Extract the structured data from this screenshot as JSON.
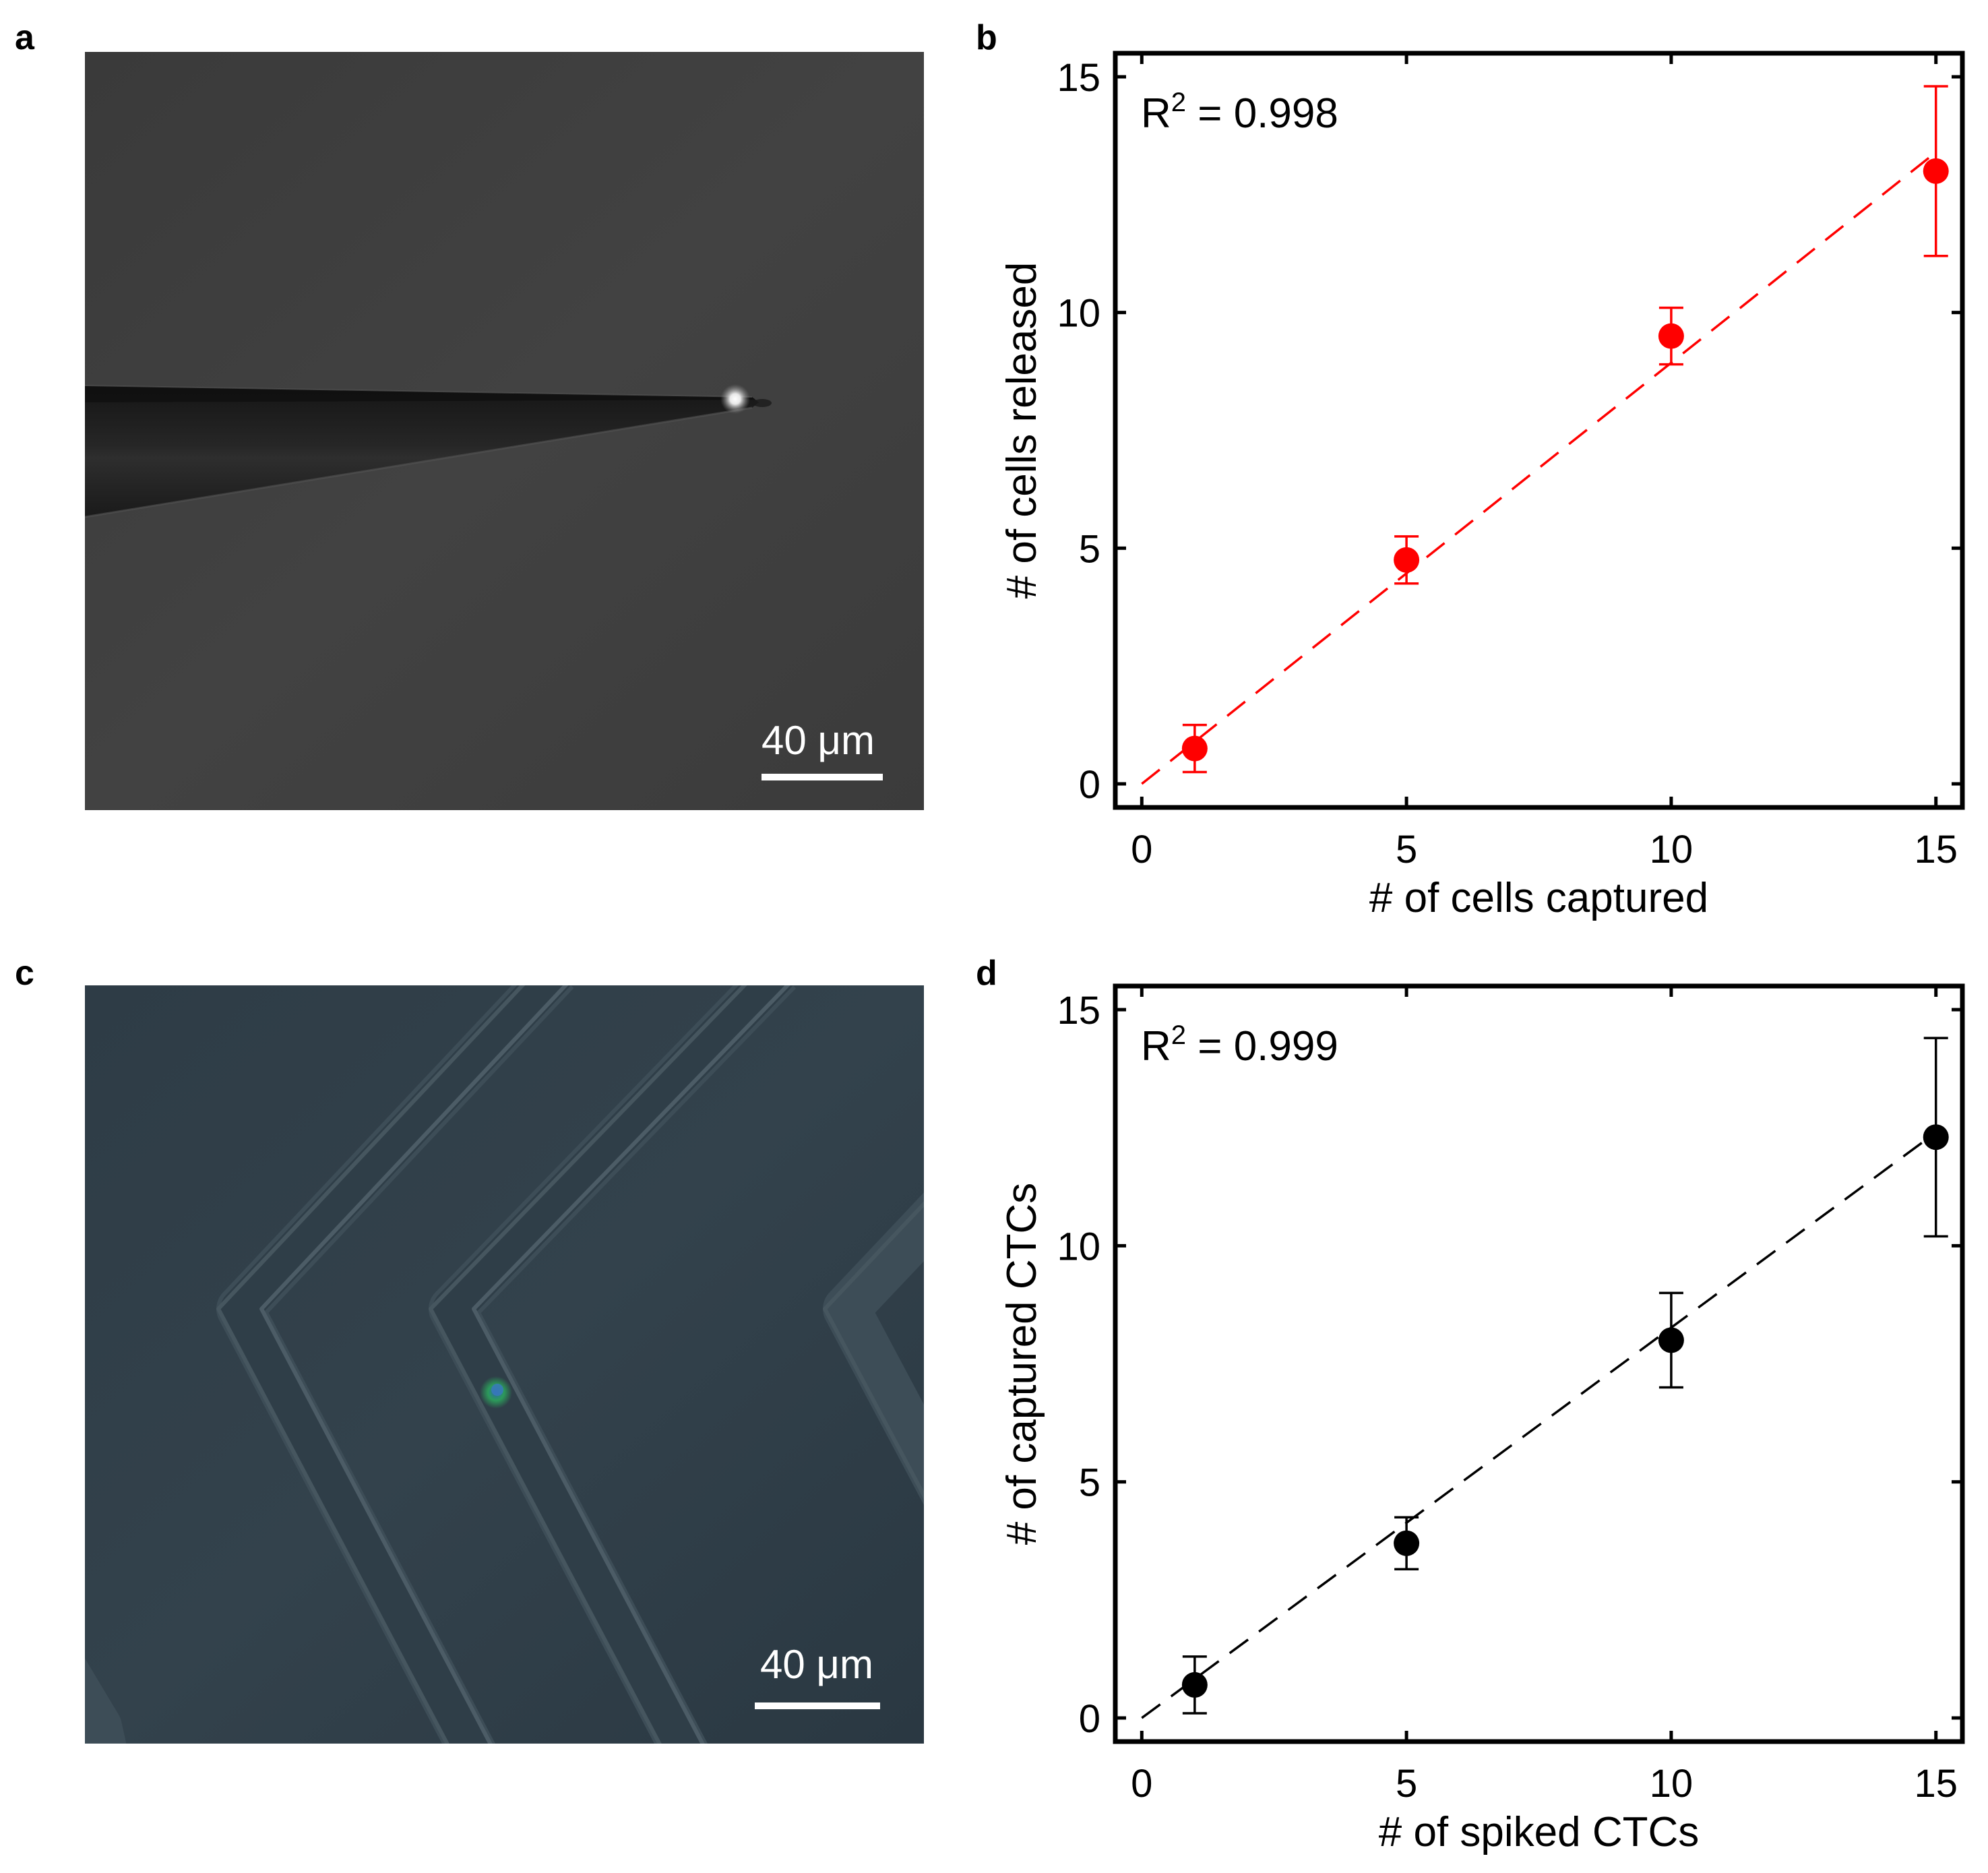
{
  "panels": {
    "a": {
      "letter": "a",
      "scale_label": "40 μm",
      "image_alt": "grayscale micrograph of a micropipette tip"
    },
    "b": {
      "letter": "b"
    },
    "c": {
      "letter": "c",
      "scale_label": "40 μm",
      "image_alt": "bright-field micrograph of herringbone microchannel with a fluorescent cell"
    },
    "d": {
      "letter": "d"
    }
  },
  "colors": {
    "red_series": "#ff0000",
    "black_series": "#000000",
    "micro_a_bg": "#3d3d3d",
    "micro_c_bg": "#2c3a44"
  },
  "chart_data": [
    {
      "id": "b",
      "type": "scatter",
      "xlabel": "# of cells captured",
      "ylabel": "# of cells released",
      "annotation_main": "R",
      "annotation_sup": "2",
      "annotation_value": " = 0.998",
      "xlim": [
        -0.5,
        15.5
      ],
      "ylim": [
        -0.5,
        15.5
      ],
      "xticks": [
        0,
        5,
        10,
        15
      ],
      "yticks": [
        0,
        5,
        10,
        15
      ],
      "x": [
        1,
        5,
        10,
        15
      ],
      "y": [
        0.75,
        4.75,
        9.5,
        13.0
      ],
      "yerr": [
        0.5,
        0.5,
        0.6,
        1.8
      ],
      "fit": {
        "x0": 0,
        "y0": 0,
        "x1": 15,
        "y1": 13.4
      },
      "color": "#ff0000"
    },
    {
      "id": "d",
      "type": "scatter",
      "xlabel": "# of spiked CTCs",
      "ylabel": "# of captured CTCs",
      "annotation_main": "R",
      "annotation_sup": "2",
      "annotation_value": " = 0.999",
      "xlim": [
        -0.5,
        15.5
      ],
      "ylim": [
        -0.5,
        15.5
      ],
      "xticks": [
        0,
        5,
        10,
        15
      ],
      "yticks": [
        0,
        5,
        10,
        15
      ],
      "x": [
        1,
        5,
        10,
        15
      ],
      "y": [
        0.7,
        3.7,
        8.0,
        12.3
      ],
      "yerr": [
        0.6,
        0.55,
        1.0,
        2.1
      ],
      "fit": {
        "x0": 0,
        "y0": 0,
        "x1": 15,
        "y1": 12.4
      },
      "color": "#000000"
    }
  ]
}
